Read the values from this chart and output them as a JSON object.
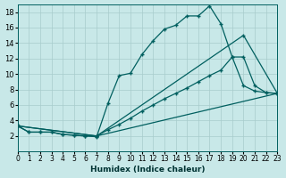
{
  "xlabel": "Humidex (Indice chaleur)",
  "bg_color": "#c8e8e8",
  "grid_color": "#a8cccc",
  "line_color": "#005f5f",
  "xlim": [
    0,
    23
  ],
  "ylim": [
    0,
    19
  ],
  "xticks": [
    0,
    1,
    2,
    3,
    4,
    5,
    6,
    7,
    8,
    9,
    10,
    11,
    12,
    13,
    14,
    15,
    16,
    17,
    18,
    19,
    20,
    21,
    22,
    23
  ],
  "yticks": [
    2,
    4,
    6,
    8,
    10,
    12,
    14,
    16,
    18
  ],
  "l1x": [
    0,
    1,
    2,
    3,
    4,
    5,
    6,
    7,
    8,
    9,
    10,
    11,
    12,
    13,
    14,
    15,
    16,
    17,
    18,
    19,
    20,
    21,
    22,
    23
  ],
  "l1y": [
    3.3,
    2.5,
    2.5,
    2.5,
    2.2,
    2.1,
    2.0,
    1.9,
    6.2,
    9.8,
    10.1,
    12.5,
    14.3,
    15.8,
    16.3,
    17.5,
    17.5,
    18.8,
    16.5,
    12.2,
    8.5,
    7.8,
    7.6,
    7.5
  ],
  "l2x": [
    0,
    1,
    2,
    3,
    4,
    5,
    6,
    7,
    8,
    9,
    10,
    11,
    12,
    13,
    14,
    15,
    16,
    17,
    18,
    19,
    20,
    21,
    22,
    23
  ],
  "l2y": [
    3.3,
    2.5,
    2.5,
    2.5,
    2.2,
    2.1,
    2.0,
    2.0,
    2.8,
    3.5,
    4.3,
    5.2,
    6.0,
    6.8,
    7.5,
    8.2,
    9.0,
    9.8,
    10.5,
    12.2,
    12.2,
    8.5,
    7.6,
    7.5
  ],
  "l3x": [
    0,
    7,
    23
  ],
  "l3y": [
    3.3,
    2.0,
    7.5
  ],
  "l4x": [
    0,
    7,
    20,
    23
  ],
  "l4y": [
    3.3,
    2.0,
    15.0,
    7.5
  ]
}
